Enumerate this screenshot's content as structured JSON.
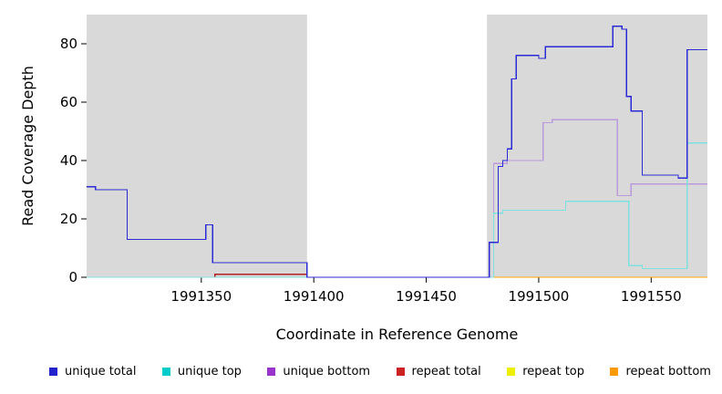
{
  "chart_data": {
    "type": "line",
    "step": "step-after",
    "title": "",
    "xlabel": "Coordinate in Reference Genome",
    "ylabel": "Read Coverage Depth",
    "xlim": [
      1991299,
      1991575
    ],
    "ylim": [
      0,
      90
    ],
    "x_ticks": [
      1991350,
      1991400,
      1991450,
      1991500,
      1991550
    ],
    "y_ticks": [
      0,
      20,
      40,
      60,
      80
    ],
    "grid": false,
    "axis_color": "#000000",
    "plot_background_color": "#D9D9D9",
    "gap_region": {
      "x_start": 1991397,
      "x_end": 1991477,
      "color": "#FFFFFF"
    },
    "series": [
      {
        "name": "repeat top",
        "line_color": "#EEEE00",
        "points": [
          [
            1991299,
            0
          ]
        ]
      },
      {
        "name": "repeat total",
        "line_color": "#B22222",
        "points": [
          [
            1991299,
            0
          ],
          [
            1991356,
            1
          ],
          [
            1991397,
            0
          ]
        ]
      },
      {
        "name": "repeat bottom",
        "line_color": "#FFA500",
        "points": [
          [
            1991299,
            0
          ]
        ]
      },
      {
        "name": "unique bottom",
        "line_color": "#BB99DD",
        "points": [
          [
            1991299,
            0
          ],
          [
            1991480,
            39
          ],
          [
            1991486,
            40
          ],
          [
            1991502,
            53
          ],
          [
            1991506,
            54
          ],
          [
            1991535,
            28
          ],
          [
            1991541,
            32
          ]
        ]
      },
      {
        "name": "unique top",
        "line_color": "#7FE0E0",
        "points": [
          [
            1991299,
            0
          ],
          [
            1991480,
            22
          ],
          [
            1991484,
            23
          ],
          [
            1991512,
            26
          ],
          [
            1991540,
            4
          ],
          [
            1991546,
            3
          ],
          [
            1991566,
            46
          ]
        ]
      },
      {
        "name": "unique total",
        "line_color": "#2B2BD5",
        "points": [
          [
            1991299,
            31
          ],
          [
            1991303,
            30
          ],
          [
            1991317,
            13
          ],
          [
            1991352,
            18
          ],
          [
            1991355,
            5
          ],
          [
            1991397,
            0
          ],
          [
            1991478,
            12
          ],
          [
            1991482,
            38
          ],
          [
            1991484,
            40
          ],
          [
            1991486,
            44
          ],
          [
            1991488,
            68
          ],
          [
            1991490,
            76
          ],
          [
            1991500,
            75
          ],
          [
            1991503,
            79
          ],
          [
            1991533,
            86
          ],
          [
            1991537,
            85
          ],
          [
            1991539,
            62
          ],
          [
            1991541,
            57
          ],
          [
            1991546,
            35
          ],
          [
            1991562,
            34
          ],
          [
            1991566,
            78
          ]
        ]
      }
    ]
  },
  "legend": {
    "items": [
      {
        "label": "unique total",
        "color": "#2222CC"
      },
      {
        "label": "unique top",
        "color": "#00CCCC"
      },
      {
        "label": "unique bottom",
        "color": "#9933CC"
      },
      {
        "label": "repeat total",
        "color": "#CC2222"
      },
      {
        "label": "repeat top",
        "color": "#EEEE00"
      },
      {
        "label": "repeat bottom",
        "color": "#FF9900"
      }
    ]
  }
}
